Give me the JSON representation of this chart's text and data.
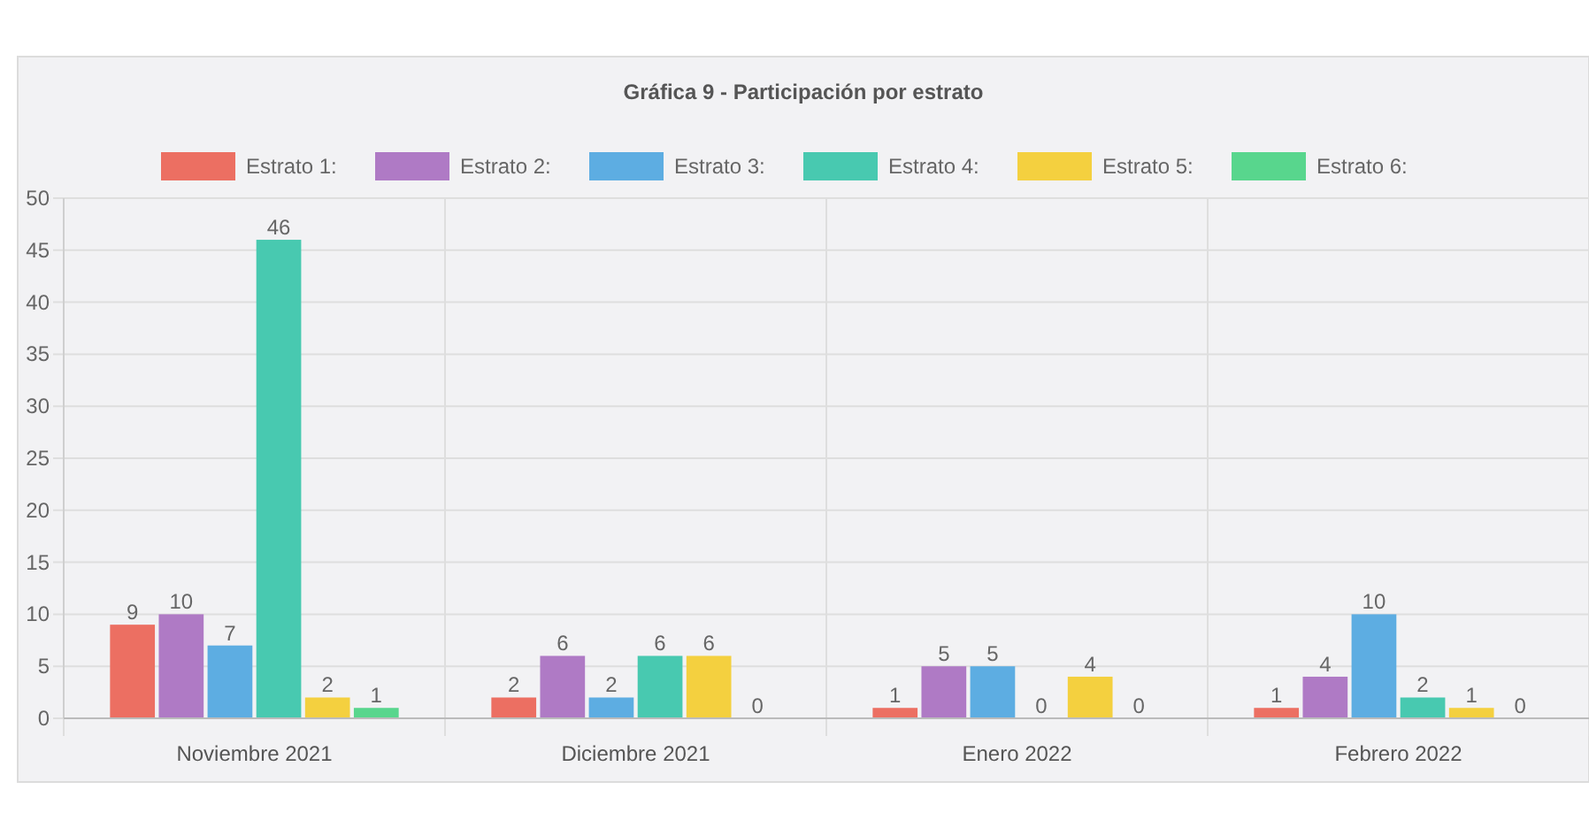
{
  "chart_data": {
    "type": "bar",
    "title": "Gráfica 9 - Participación por estrato",
    "categories": [
      "Noviembre 2021",
      "Diciembre 2021",
      "Enero 2022",
      "Febrero 2022"
    ],
    "series": [
      {
        "name": "Estrato 1:",
        "color": "#ec6f62",
        "values": [
          9,
          2,
          1,
          1
        ]
      },
      {
        "name": "Estrato 2:",
        "color": "#af7ac5",
        "values": [
          10,
          6,
          5,
          4
        ]
      },
      {
        "name": "Estrato 3:",
        "color": "#5dade2",
        "values": [
          7,
          2,
          5,
          10
        ]
      },
      {
        "name": "Estrato 4:",
        "color": "#48c9b0",
        "values": [
          46,
          6,
          0,
          2
        ]
      },
      {
        "name": "Estrato 5:",
        "color": "#f4d03f",
        "values": [
          2,
          6,
          4,
          1
        ]
      },
      {
        "name": "Estrato 6:",
        "color": "#58d68d",
        "values": [
          1,
          0,
          0,
          0
        ]
      }
    ],
    "ylim": [
      0,
      50
    ],
    "yticks": [
      0,
      5,
      10,
      15,
      20,
      25,
      30,
      35,
      40,
      45,
      50
    ],
    "grid": true,
    "legend": "top",
    "data_labels": true
  }
}
